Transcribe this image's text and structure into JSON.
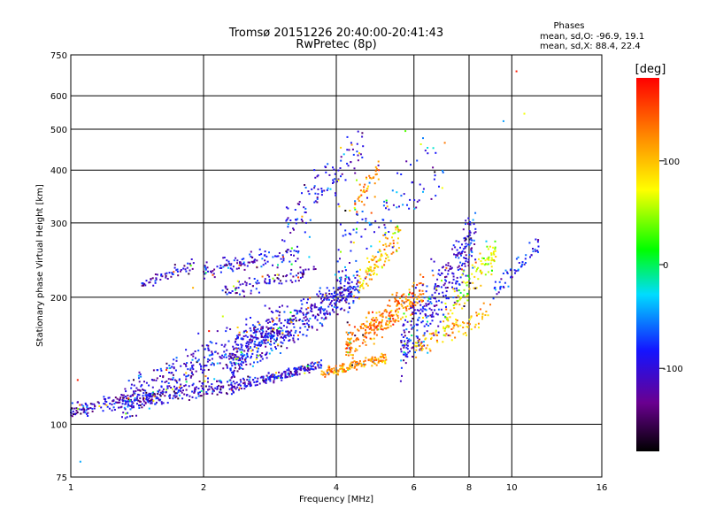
{
  "chart_data": {
    "type": "scatter",
    "title": "Tromsø 20151226 20:40:00-20:41:43",
    "subtitle": "RwPretec (8p)",
    "xlabel": "Frequency [MHz]",
    "ylabel": "Stationary phase Virtual Height [km]",
    "x_scale": "log",
    "y_scale": "log",
    "xlim": [
      1,
      16
    ],
    "ylim": [
      75,
      750
    ],
    "x_ticks": [
      1,
      2,
      4,
      6,
      8,
      10,
      16
    ],
    "y_ticks": [
      75,
      100,
      200,
      300,
      400,
      500,
      600,
      750
    ],
    "grid": true,
    "legend": {
      "heading": "Phases",
      "lines": [
        "mean, sd,O: -96.9, 19.1",
        "mean, sd,X:  88.4, 22.4"
      ],
      "position": "top-right"
    },
    "colorbar": {
      "label": "[deg]",
      "ticks": [
        100,
        0,
        -100
      ],
      "range": [
        -180,
        180
      ],
      "colormap": "rainbow"
    },
    "series": [
      {
        "traces": [
          {
            "x0": 1.0,
            "x1": 2.5,
            "y0": 108,
            "y1": 125,
            "n": 320,
            "spread": 0.035,
            "phase": -110
          },
          {
            "x0": 1.3,
            "x1": 3.0,
            "y0": 112,
            "y1": 175,
            "n": 380,
            "spread": 0.1,
            "phase": -105
          },
          {
            "x0": 2.5,
            "x1": 3.7,
            "y0": 125,
            "y1": 138,
            "n": 170,
            "spread": 0.025,
            "phase": -105
          },
          {
            "x0": 1.45,
            "x1": 1.9,
            "y0": 215,
            "y1": 237,
            "n": 60,
            "spread": 0.03,
            "phase": -110
          },
          {
            "x0": 2.0,
            "x1": 3.3,
            "y0": 232,
            "y1": 255,
            "n": 120,
            "spread": 0.04,
            "phase": -105
          },
          {
            "x0": 2.2,
            "x1": 3.6,
            "y0": 205,
            "y1": 232,
            "n": 90,
            "spread": 0.04,
            "phase": -110
          },
          {
            "x0": 2.3,
            "x1": 4.5,
            "y0": 140,
            "y1": 215,
            "n": 520,
            "spread": 0.09,
            "phase": -100
          },
          {
            "x0": 3.0,
            "x1": 4.6,
            "y0": 290,
            "y1": 460,
            "n": 110,
            "spread": 0.12,
            "phase": -100
          },
          {
            "x0": 3.7,
            "x1": 5.2,
            "y0": 132,
            "y1": 144,
            "n": 150,
            "spread": 0.025,
            "phase": 120
          },
          {
            "x0": 4.2,
            "x1": 6.3,
            "y0": 155,
            "y1": 205,
            "n": 280,
            "spread": 0.08,
            "phase": 125
          },
          {
            "x0": 4.5,
            "x1": 5.6,
            "y0": 215,
            "y1": 285,
            "n": 110,
            "spread": 0.07,
            "phase": 95
          },
          {
            "x0": 4.4,
            "x1": 5.0,
            "y0": 330,
            "y1": 400,
            "n": 45,
            "spread": 0.06,
            "phase": 115
          },
          {
            "x0": 5.6,
            "x1": 8.3,
            "y0": 150,
            "y1": 280,
            "n": 330,
            "spread": 0.16,
            "phase": -100
          },
          {
            "x0": 7.0,
            "x1": 9.2,
            "y0": 175,
            "y1": 260,
            "n": 120,
            "spread": 0.08,
            "phase": 65
          },
          {
            "x0": 4.0,
            "x1": 7.0,
            "y0": 250,
            "y1": 420,
            "n": 90,
            "spread": 0.14,
            "phase": -90
          },
          {
            "x0": 6.0,
            "x1": 9.0,
            "y0": 150,
            "y1": 185,
            "n": 90,
            "spread": 0.05,
            "phase": 110
          },
          {
            "x0": 9.0,
            "x1": 11.5,
            "y0": 205,
            "y1": 265,
            "n": 55,
            "spread": 0.06,
            "phase": -90
          },
          {
            "x0": 1.0,
            "x1": 11.0,
            "y0": 100,
            "y1": 660,
            "n": 45,
            "spread": 0.25,
            "phase": 0
          }
        ]
      }
    ]
  }
}
